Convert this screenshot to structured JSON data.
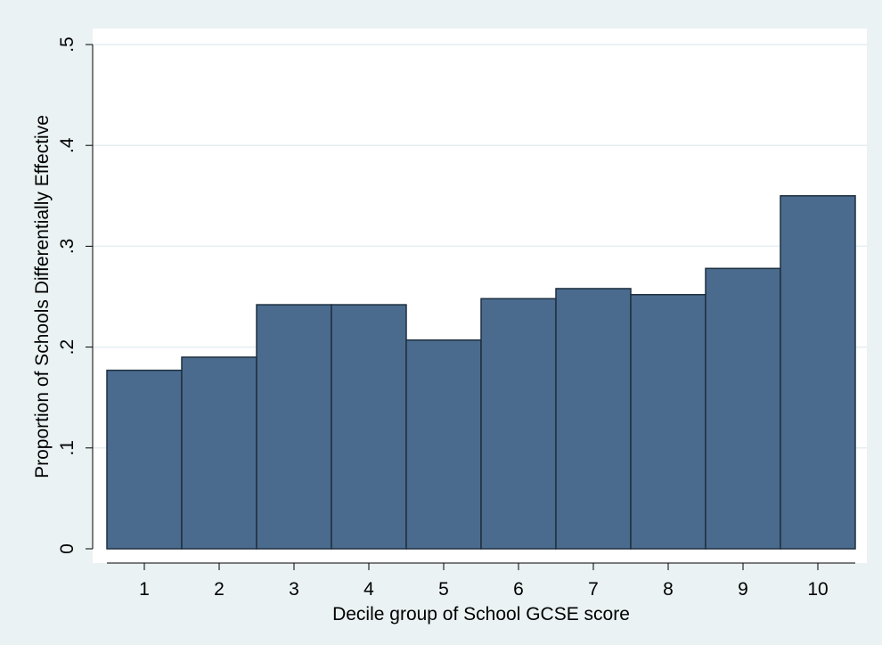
{
  "chart_data": {
    "type": "bar",
    "title": "",
    "xlabel": "Decile group of School GCSE score",
    "ylabel": "Proportion of Schools Differentially Effective",
    "categories": [
      "1",
      "2",
      "3",
      "4",
      "5",
      "6",
      "7",
      "8",
      "9",
      "10"
    ],
    "values": [
      0.177,
      0.19,
      0.242,
      0.242,
      0.207,
      0.248,
      0.258,
      0.252,
      0.278,
      0.35
    ],
    "ylim": [
      0,
      0.5
    ],
    "yticks": [
      0,
      0.1,
      0.2,
      0.3,
      0.4,
      0.5
    ],
    "ytick_labels": [
      "0",
      ".1",
      ".2",
      ".3",
      ".4",
      ".5"
    ],
    "grid": true,
    "legend": "none",
    "colors": {
      "bar_fill": "#4a6b8d",
      "bar_stroke": "#1e2f40",
      "plot_background": "#ffffff",
      "figure_background": "#eaf2f3",
      "gridline": "#e4eef0"
    }
  }
}
